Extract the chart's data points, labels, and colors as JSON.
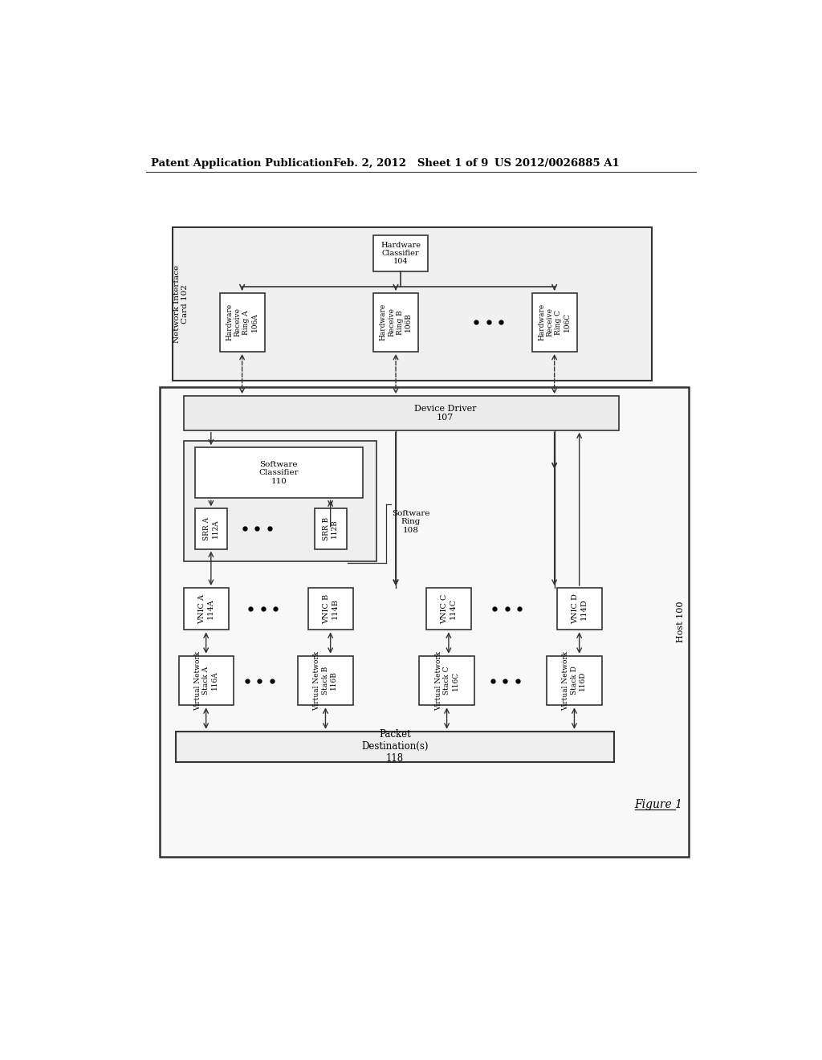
{
  "bg_color": "#ffffff",
  "title_left": "Patent Application Publication",
  "title_mid": "Feb. 2, 2012   Sheet 1 of 9",
  "title_right": "US 2012/0026885 A1",
  "figure_label": "Figure 1"
}
